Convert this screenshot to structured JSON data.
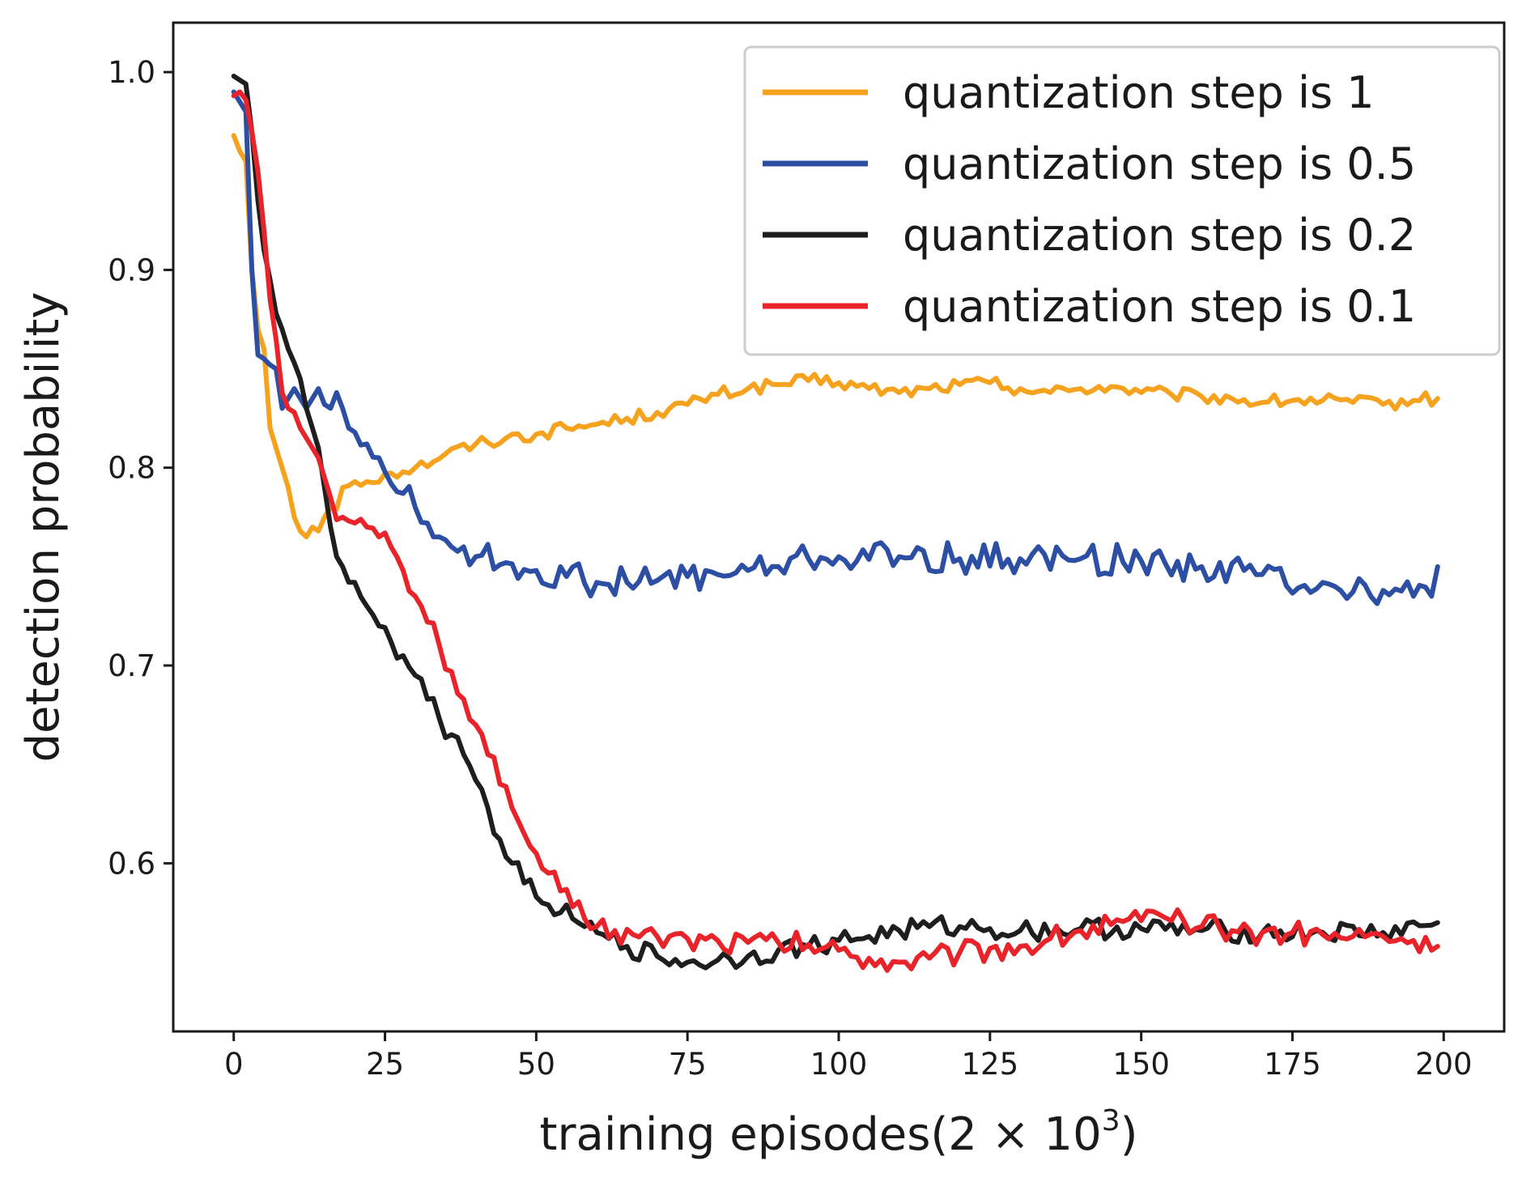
{
  "chart_data": {
    "type": "line",
    "title": "",
    "xlabel": "training episodes(2 × 10",
    "xlabel_superscript": "3",
    "xlabel_suffix": ")",
    "ylabel": "detection probability",
    "xlim": [
      -10,
      210
    ],
    "ylim": [
      0.515,
      1.025
    ],
    "xticks": [
      0,
      25,
      50,
      75,
      100,
      125,
      150,
      175,
      200
    ],
    "yticks": [
      0.6,
      0.7,
      0.8,
      0.9,
      1.0
    ],
    "xtick_labels": [
      "0",
      "25",
      "50",
      "75",
      "100",
      "125",
      "150",
      "175",
      "200"
    ],
    "ytick_labels": [
      "0.6",
      "0.7",
      "0.8",
      "0.9",
      "1.0"
    ],
    "legend_position": "top-right",
    "grid": false,
    "series": [
      {
        "name": "quantization step is 1",
        "color": "#f5a21f",
        "points": [
          [
            0,
            0.968
          ],
          [
            1,
            0.96
          ],
          [
            2,
            0.955
          ],
          [
            3,
            0.9
          ],
          [
            4,
            0.87
          ],
          [
            5,
            0.86
          ],
          [
            6,
            0.82
          ],
          [
            7,
            0.81
          ],
          [
            8,
            0.8
          ],
          [
            9,
            0.79
          ],
          [
            10,
            0.775
          ],
          [
            11,
            0.768
          ],
          [
            12,
            0.765
          ],
          [
            13,
            0.77
          ],
          [
            14,
            0.768
          ],
          [
            15,
            0.775
          ],
          [
            16,
            0.78
          ],
          [
            17,
            0.779
          ],
          [
            18,
            0.79
          ],
          [
            20,
            0.793
          ],
          [
            22,
            0.793
          ],
          [
            25,
            0.797
          ],
          [
            28,
            0.798
          ],
          [
            30,
            0.8
          ],
          [
            35,
            0.807
          ],
          [
            40,
            0.812
          ],
          [
            45,
            0.815
          ],
          [
            50,
            0.817
          ],
          [
            55,
            0.82
          ],
          [
            60,
            0.822
          ],
          [
            65,
            0.825
          ],
          [
            70,
            0.828
          ],
          [
            75,
            0.832
          ],
          [
            80,
            0.837
          ],
          [
            85,
            0.84
          ],
          [
            90,
            0.842
          ],
          [
            95,
            0.844
          ],
          [
            100,
            0.843
          ],
          [
            105,
            0.84
          ],
          [
            110,
            0.838
          ],
          [
            115,
            0.84
          ],
          [
            120,
            0.842
          ],
          [
            125,
            0.843
          ],
          [
            130,
            0.84
          ],
          [
            135,
            0.838
          ],
          [
            140,
            0.84
          ],
          [
            145,
            0.841
          ],
          [
            150,
            0.838
          ],
          [
            155,
            0.837
          ],
          [
            160,
            0.836
          ],
          [
            165,
            0.835
          ],
          [
            170,
            0.833
          ],
          [
            175,
            0.834
          ],
          [
            180,
            0.834
          ],
          [
            185,
            0.833
          ],
          [
            190,
            0.832
          ],
          [
            195,
            0.834
          ],
          [
            199,
            0.835
          ]
        ]
      },
      {
        "name": "quantization step is 0.5",
        "color": "#2c4fa3",
        "points": [
          [
            0,
            0.99
          ],
          [
            1,
            0.985
          ],
          [
            2,
            0.98
          ],
          [
            3,
            0.9
          ],
          [
            4,
            0.857
          ],
          [
            5,
            0.855
          ],
          [
            6,
            0.852
          ],
          [
            7,
            0.85
          ],
          [
            8,
            0.83
          ],
          [
            9,
            0.835
          ],
          [
            10,
            0.84
          ],
          [
            11,
            0.835
          ],
          [
            12,
            0.83
          ],
          [
            13,
            0.835
          ],
          [
            14,
            0.84
          ],
          [
            15,
            0.832
          ],
          [
            16,
            0.83
          ],
          [
            17,
            0.838
          ],
          [
            18,
            0.83
          ],
          [
            19,
            0.82
          ],
          [
            20,
            0.818
          ],
          [
            22,
            0.812
          ],
          [
            24,
            0.805
          ],
          [
            25,
            0.798
          ],
          [
            26,
            0.792
          ],
          [
            28,
            0.787
          ],
          [
            30,
            0.78
          ],
          [
            32,
            0.772
          ],
          [
            34,
            0.765
          ],
          [
            36,
            0.76
          ],
          [
            38,
            0.76
          ],
          [
            40,
            0.755
          ],
          [
            45,
            0.752
          ],
          [
            50,
            0.748
          ],
          [
            55,
            0.745
          ],
          [
            60,
            0.742
          ],
          [
            65,
            0.742
          ],
          [
            70,
            0.743
          ],
          [
            75,
            0.745
          ],
          [
            80,
            0.746
          ],
          [
            85,
            0.748
          ],
          [
            90,
            0.75
          ],
          [
            95,
            0.754
          ],
          [
            100,
            0.755
          ],
          [
            110,
            0.755
          ],
          [
            120,
            0.754
          ],
          [
            130,
            0.754
          ],
          [
            140,
            0.754
          ],
          [
            150,
            0.753
          ],
          [
            160,
            0.75
          ],
          [
            170,
            0.746
          ],
          [
            180,
            0.742
          ],
          [
            190,
            0.738
          ],
          [
            195,
            0.735
          ],
          [
            198,
            0.735
          ],
          [
            199,
            0.75
          ]
        ]
      },
      {
        "name": "quantization step is 0.2",
        "color": "#1e1e1e",
        "points": [
          [
            0,
            0.998
          ],
          [
            1,
            0.996
          ],
          [
            2,
            0.994
          ],
          [
            3,
            0.97
          ],
          [
            4,
            0.935
          ],
          [
            5,
            0.91
          ],
          [
            6,
            0.895
          ],
          [
            7,
            0.878
          ],
          [
            8,
            0.87
          ],
          [
            9,
            0.86
          ],
          [
            10,
            0.853
          ],
          [
            11,
            0.845
          ],
          [
            12,
            0.83
          ],
          [
            13,
            0.82
          ],
          [
            14,
            0.81
          ],
          [
            15,
            0.79
          ],
          [
            16,
            0.77
          ],
          [
            17,
            0.755
          ],
          [
            18,
            0.75
          ],
          [
            20,
            0.742
          ],
          [
            22,
            0.73
          ],
          [
            24,
            0.72
          ],
          [
            26,
            0.712
          ],
          [
            28,
            0.705
          ],
          [
            30,
            0.695
          ],
          [
            32,
            0.683
          ],
          [
            34,
            0.673
          ],
          [
            36,
            0.665
          ],
          [
            38,
            0.655
          ],
          [
            40,
            0.642
          ],
          [
            42,
            0.628
          ],
          [
            44,
            0.612
          ],
          [
            46,
            0.6
          ],
          [
            48,
            0.59
          ],
          [
            50,
            0.583
          ],
          [
            52,
            0.579
          ],
          [
            54,
            0.575
          ],
          [
            56,
            0.572
          ],
          [
            58,
            0.568
          ],
          [
            60,
            0.565
          ],
          [
            62,
            0.562
          ],
          [
            65,
            0.558
          ],
          [
            70,
            0.553
          ],
          [
            75,
            0.55
          ],
          [
            80,
            0.551
          ],
          [
            85,
            0.553
          ],
          [
            90,
            0.556
          ],
          [
            95,
            0.558
          ],
          [
            100,
            0.561
          ],
          [
            105,
            0.563
          ],
          [
            110,
            0.566
          ],
          [
            115,
            0.568
          ],
          [
            120,
            0.568
          ],
          [
            125,
            0.567
          ],
          [
            130,
            0.566
          ],
          [
            140,
            0.567
          ],
          [
            150,
            0.567
          ],
          [
            160,
            0.566
          ],
          [
            170,
            0.565
          ],
          [
            180,
            0.565
          ],
          [
            190,
            0.565
          ],
          [
            199,
            0.57
          ]
        ]
      },
      {
        "name": "quantization step is 0.1",
        "color": "#e8242a",
        "points": [
          [
            0,
            0.988
          ],
          [
            1,
            0.99
          ],
          [
            2,
            0.986
          ],
          [
            3,
            0.97
          ],
          [
            4,
            0.95
          ],
          [
            5,
            0.92
          ],
          [
            6,
            0.885
          ],
          [
            7,
            0.865
          ],
          [
            8,
            0.838
          ],
          [
            9,
            0.83
          ],
          [
            10,
            0.828
          ],
          [
            11,
            0.82
          ],
          [
            12,
            0.815
          ],
          [
            13,
            0.81
          ],
          [
            14,
            0.805
          ],
          [
            15,
            0.795
          ],
          [
            16,
            0.785
          ],
          [
            18,
            0.775
          ],
          [
            20,
            0.772
          ],
          [
            22,
            0.77
          ],
          [
            24,
            0.765
          ],
          [
            26,
            0.76
          ],
          [
            28,
            0.748
          ],
          [
            30,
            0.735
          ],
          [
            32,
            0.722
          ],
          [
            34,
            0.71
          ],
          [
            36,
            0.697
          ],
          [
            38,
            0.683
          ],
          [
            40,
            0.67
          ],
          [
            42,
            0.655
          ],
          [
            44,
            0.64
          ],
          [
            46,
            0.628
          ],
          [
            48,
            0.615
          ],
          [
            50,
            0.605
          ],
          [
            52,
            0.595
          ],
          [
            54,
            0.586
          ],
          [
            56,
            0.578
          ],
          [
            58,
            0.572
          ],
          [
            60,
            0.568
          ],
          [
            63,
            0.566
          ],
          [
            66,
            0.564
          ],
          [
            70,
            0.563
          ],
          [
            75,
            0.562
          ],
          [
            80,
            0.561
          ],
          [
            85,
            0.56
          ],
          [
            90,
            0.56
          ],
          [
            95,
            0.559
          ],
          [
            100,
            0.556
          ],
          [
            105,
            0.552
          ],
          [
            110,
            0.55
          ],
          [
            115,
            0.552
          ],
          [
            120,
            0.555
          ],
          [
            125,
            0.557
          ],
          [
            130,
            0.558
          ],
          [
            135,
            0.562
          ],
          [
            140,
            0.566
          ],
          [
            145,
            0.569
          ],
          [
            150,
            0.571
          ],
          [
            155,
            0.571
          ],
          [
            160,
            0.568
          ],
          [
            165,
            0.566
          ],
          [
            170,
            0.565
          ],
          [
            175,
            0.565
          ],
          [
            180,
            0.564
          ],
          [
            185,
            0.563
          ],
          [
            190,
            0.563
          ],
          [
            195,
            0.561
          ],
          [
            198,
            0.556
          ],
          [
            199,
            0.558
          ]
        ]
      }
    ]
  }
}
